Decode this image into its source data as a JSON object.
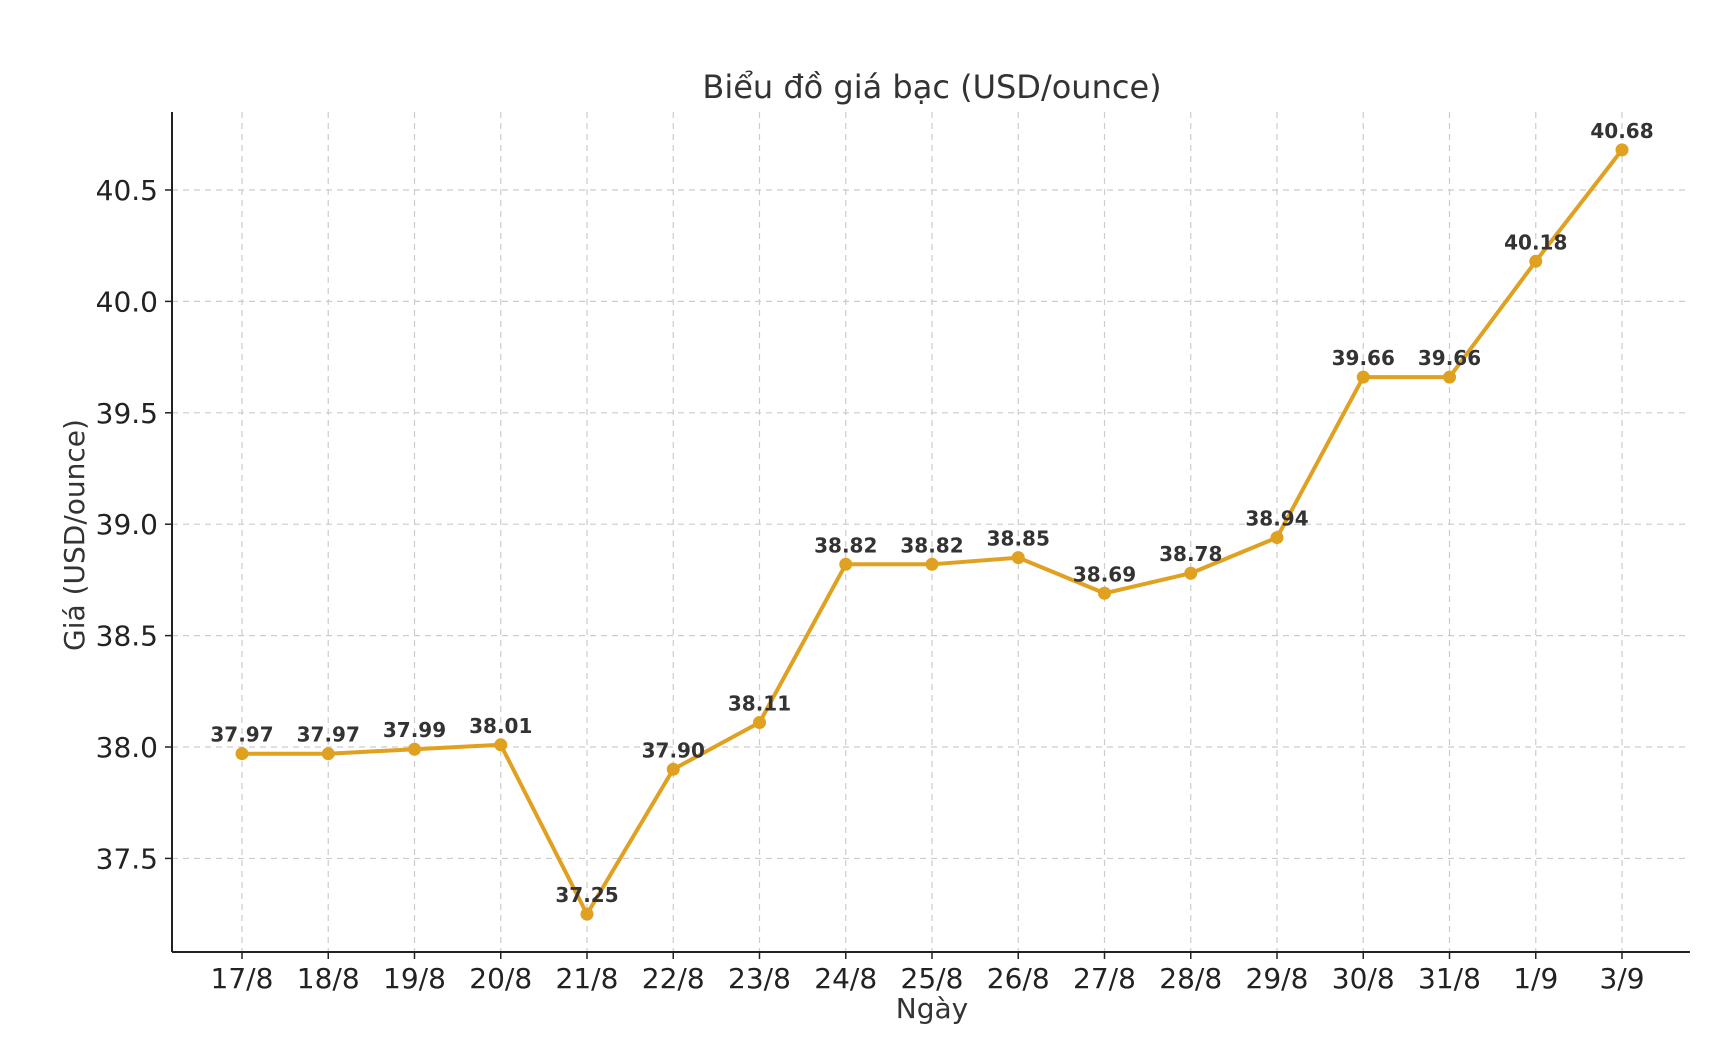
{
  "chart_data": {
    "type": "line",
    "title": "Biểu đồ giá bạc (USD/ounce)",
    "xlabel": "Ngày",
    "ylabel": "Giá (USD/ounce)",
    "categories": [
      "17/8",
      "18/8",
      "19/8",
      "20/8",
      "21/8",
      "22/8",
      "23/8",
      "24/8",
      "25/8",
      "26/8",
      "27/8",
      "28/8",
      "29/8",
      "30/8",
      "31/8",
      "1/9",
      "3/9"
    ],
    "series": [
      {
        "values": [
          37.97,
          37.97,
          37.99,
          38.01,
          37.25,
          37.9,
          38.11,
          38.82,
          38.82,
          38.85,
          38.69,
          38.78,
          38.94,
          39.66,
          39.66,
          40.18,
          40.68
        ],
        "data_labels": [
          "37.97",
          "37.97",
          "37.99",
          "38.01",
          "37.25",
          "37.90",
          "38.11",
          "38.82",
          "38.82",
          "38.85",
          "38.69",
          "38.78",
          "38.94",
          "39.66",
          "39.66",
          "40.18",
          "40.68"
        ],
        "color": "#E0A020"
      }
    ],
    "yticks": [
      "37.5",
      "38.0",
      "38.5",
      "39.0",
      "39.5",
      "40.0",
      "40.5"
    ],
    "ytick_values": [
      37.5,
      38.0,
      38.5,
      39.0,
      39.5,
      40.0,
      40.5
    ],
    "ylim": [
      37.08,
      40.85
    ],
    "grid": true,
    "legend": false
  }
}
